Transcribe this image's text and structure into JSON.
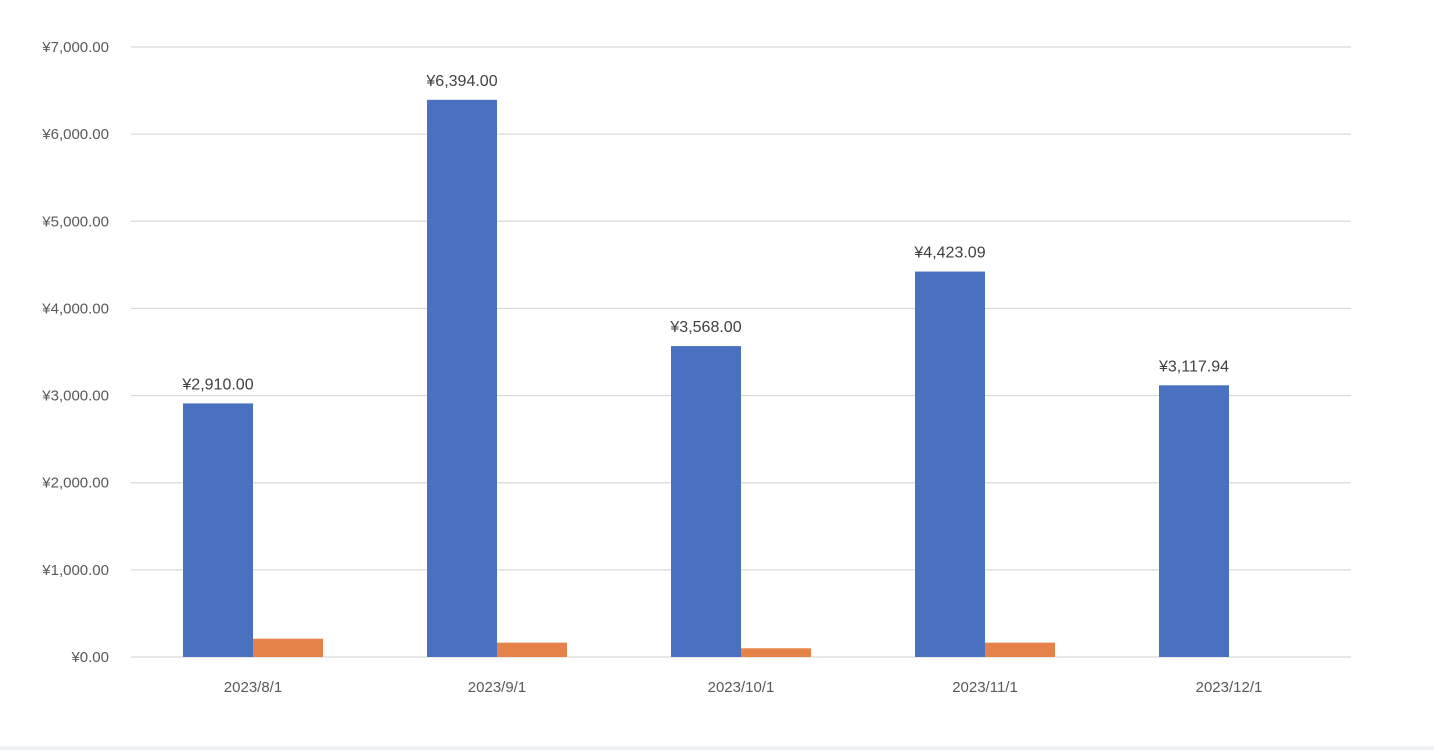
{
  "chart_data": {
    "type": "bar",
    "categories": [
      "2023/8/1",
      "2023/9/1",
      "2023/10/1",
      "2023/11/1",
      "2023/12/1"
    ],
    "series": [
      {
        "color": "#4a71c0",
        "values": [
          2910.0,
          6394.0,
          3568.0,
          4423.09,
          3117.94
        ],
        "data_labels": [
          "¥2,910.00",
          "¥6,394.00",
          "¥3,568.00",
          "¥4,423.09",
          "¥3,117.94"
        ]
      },
      {
        "color": "#e4824a",
        "values": [
          210,
          165,
          100,
          165,
          0
        ]
      }
    ],
    "y_ticks": [
      0,
      1000,
      2000,
      3000,
      4000,
      5000,
      6000,
      7000
    ],
    "y_tick_labels": [
      "¥0.00",
      "¥1,000.00",
      "¥2,000.00",
      "¥3,000.00",
      "¥4,000.00",
      "¥5,000.00",
      "¥6,000.00",
      "¥7,000.00"
    ],
    "ylim": [
      0,
      7000
    ],
    "grid": true,
    "gridline_color": "#d9d9d9",
    "legend": "none",
    "title": "",
    "xlabel": "",
    "ylabel": ""
  }
}
